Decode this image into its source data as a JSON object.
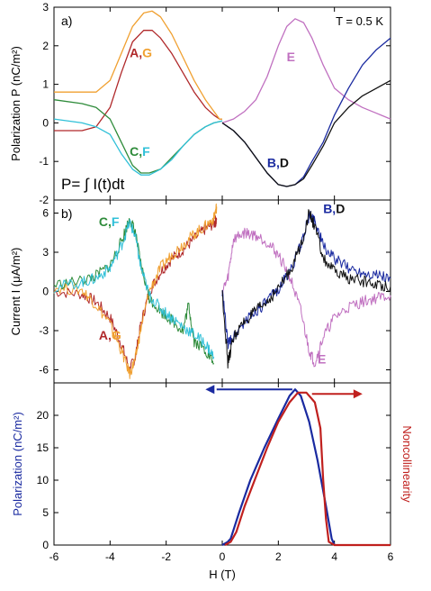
{
  "chart_data": [
    {
      "type": "line",
      "panel_label": "a)",
      "annotation_temperature": "T = 0.5 K",
      "annotation_formula": "P= ∫ I(t)dt",
      "ylabel": "Polarization P (nC/m²)",
      "xlim": [
        -6,
        6
      ],
      "ylim": [
        -2,
        3
      ],
      "xticks": [
        -6,
        -4,
        -2,
        0,
        2,
        4,
        6
      ],
      "yticks": [
        -2,
        -1,
        0,
        1,
        2,
        3
      ],
      "grid": false,
      "series": [
        {
          "name": "A,G",
          "color": "#b0282a",
          "x": [
            -6,
            -5,
            -4.5,
            -4.0,
            -3.6,
            -3.2,
            -2.8,
            -2.5,
            -2.2,
            -1.8,
            -1.4,
            -1.0,
            -0.6,
            -0.3,
            -0.1,
            0.0
          ],
          "y": [
            -0.2,
            -0.2,
            -0.1,
            0.4,
            1.3,
            2.1,
            2.4,
            2.4,
            2.2,
            1.8,
            1.3,
            0.8,
            0.4,
            0.2,
            0.1,
            0.1
          ]
        },
        {
          "name": "A,G",
          "color": "#f0a030",
          "x": [
            -6,
            -5,
            -4.5,
            -4.0,
            -3.6,
            -3.2,
            -2.8,
            -2.5,
            -2.2,
            -1.8,
            -1.4,
            -1.0,
            -0.6,
            -0.3,
            -0.1,
            0.0
          ],
          "y": [
            0.8,
            0.8,
            0.8,
            1.1,
            1.8,
            2.5,
            2.85,
            2.9,
            2.75,
            2.3,
            1.7,
            1.1,
            0.6,
            0.3,
            0.1,
            0.1
          ]
        },
        {
          "name": "C,F",
          "color": "#2e8b3a",
          "x": [
            -6,
            -5,
            -4.5,
            -4.0,
            -3.6,
            -3.2,
            -2.9,
            -2.6,
            -2.2,
            -1.8,
            -1.4,
            -1.0,
            -0.6,
            -0.3,
            0.0
          ],
          "y": [
            0.6,
            0.5,
            0.4,
            0.1,
            -0.5,
            -1.1,
            -1.3,
            -1.3,
            -1.2,
            -0.9,
            -0.6,
            -0.3,
            -0.1,
            0.0,
            0.05
          ]
        },
        {
          "name": "C,F",
          "color": "#30c0d8",
          "x": [
            -6,
            -5,
            -4.5,
            -4.0,
            -3.6,
            -3.2,
            -2.9,
            -2.6,
            -2.2,
            -1.8,
            -1.4,
            -1.0,
            -0.6,
            -0.3,
            0.0
          ],
          "y": [
            0.1,
            0.0,
            -0.1,
            -0.3,
            -0.8,
            -1.2,
            -1.35,
            -1.35,
            -1.2,
            -0.95,
            -0.6,
            -0.3,
            -0.1,
            0.0,
            0.05
          ]
        },
        {
          "name": "E",
          "color": "#c070c0",
          "x": [
            0.0,
            0.4,
            0.8,
            1.2,
            1.6,
            2.0,
            2.3,
            2.6,
            2.9,
            3.2,
            3.6,
            4.0,
            4.5,
            5.0,
            5.5,
            6.0
          ],
          "y": [
            0.0,
            0.1,
            0.3,
            0.6,
            1.2,
            2.0,
            2.5,
            2.7,
            2.6,
            2.2,
            1.5,
            0.9,
            0.6,
            0.4,
            0.25,
            0.1
          ]
        },
        {
          "name": "B,D",
          "color": "#1a2aa0",
          "x": [
            0.0,
            0.4,
            0.8,
            1.2,
            1.6,
            2.0,
            2.3,
            2.6,
            2.9,
            3.2,
            3.6,
            4.0,
            4.5,
            5.0,
            5.5,
            6.0
          ],
          "y": [
            0.0,
            -0.2,
            -0.5,
            -0.9,
            -1.3,
            -1.6,
            -1.65,
            -1.6,
            -1.4,
            -1.0,
            -0.5,
            0.2,
            0.9,
            1.5,
            1.9,
            2.2
          ]
        },
        {
          "name": "B,D",
          "color": "#111111",
          "x": [
            0.0,
            0.4,
            0.8,
            1.2,
            1.6,
            2.0,
            2.3,
            2.6,
            2.9,
            3.2,
            3.6,
            4.0,
            4.5,
            5.0,
            5.5,
            6.0
          ],
          "y": [
            0.0,
            -0.2,
            -0.5,
            -0.9,
            -1.3,
            -1.6,
            -1.65,
            -1.6,
            -1.45,
            -1.1,
            -0.6,
            0.0,
            0.4,
            0.7,
            0.9,
            1.1
          ]
        }
      ],
      "labels": [
        {
          "text": "A,G",
          "x": -3.3,
          "y": 1.7,
          "color_A": "#b0282a",
          "color_G": "#f0a030"
        },
        {
          "text": "C,F",
          "x": -3.3,
          "y": -0.85,
          "color_A": "#2e8b3a",
          "color_G": "#30c0d8"
        },
        {
          "text": "E",
          "x": 2.3,
          "y": 1.6,
          "color": "#c070c0"
        },
        {
          "text": "B,D",
          "x": 1.6,
          "y": -1.15,
          "color_A": "#1a2aa0",
          "color_G": "#111111"
        }
      ]
    },
    {
      "type": "line",
      "panel_label": "b)",
      "ylabel": "Current I (μA/m²)",
      "xlim": [
        -6,
        6
      ],
      "ylim": [
        -7,
        7
      ],
      "xticks": [
        -6,
        -4,
        -2,
        0,
        2,
        4,
        6
      ],
      "yticks": [
        -6,
        -3,
        0,
        3,
        6
      ],
      "grid": false,
      "series": [
        {
          "name": "A,G",
          "color": "#b0282a",
          "x": [
            -6,
            -5,
            -4.5,
            -4,
            -3.6,
            -3.3,
            -3.1,
            -2.9,
            -2.6,
            -2.2,
            -1.8,
            -1.4,
            -1.0,
            -0.6,
            -0.3,
            -0.2
          ],
          "y": [
            0,
            -0.2,
            -0.8,
            -2.0,
            -4.0,
            -6.0,
            -5.0,
            -2.5,
            0.0,
            1.5,
            2.5,
            3.2,
            4.0,
            4.8,
            5.2,
            5.5
          ]
        },
        {
          "name": "A,G",
          "color": "#f0a030",
          "x": [
            -6,
            -5,
            -4.5,
            -4,
            -3.6,
            -3.3,
            -3.1,
            -2.9,
            -2.6,
            -2.2,
            -1.8,
            -1.4,
            -1.0,
            -0.6,
            -0.3,
            -0.2
          ],
          "y": [
            0.3,
            0.1,
            -1.0,
            -2.5,
            -4.5,
            -6.3,
            -5.2,
            -2.8,
            0.0,
            1.8,
            2.8,
            3.6,
            4.4,
            5.0,
            5.6,
            6.5
          ]
        },
        {
          "name": "C,F",
          "color": "#2e8b3a",
          "x": [
            -6,
            -5,
            -4.5,
            -4,
            -3.6,
            -3.3,
            -3.1,
            -2.9,
            -2.6,
            -2.2,
            -1.8,
            -1.4,
            -1.2,
            -1.0,
            -0.6,
            -0.3
          ],
          "y": [
            0.5,
            0.8,
            1.2,
            2.0,
            3.8,
            5.6,
            4.5,
            2.0,
            -0.5,
            -1.5,
            -2.2,
            -3.0,
            -1.0,
            -3.8,
            -4.5,
            -5.5
          ]
        },
        {
          "name": "C,F",
          "color": "#30c0d8",
          "x": [
            -6,
            -5,
            -4.5,
            -4,
            -3.6,
            -3.3,
            -3.1,
            -2.9,
            -2.6,
            -2.2,
            -1.8,
            -1.4,
            -1.0,
            -0.6,
            -0.3
          ],
          "y": [
            0.3,
            0.7,
            1.0,
            1.8,
            3.5,
            5.3,
            4.2,
            1.8,
            -0.3,
            -1.3,
            -2.0,
            -2.7,
            -3.3,
            -4.0,
            -5.0
          ]
        },
        {
          "name": "E",
          "color": "#c070c0",
          "x": [
            0.0,
            0.2,
            0.4,
            0.8,
            1.2,
            1.6,
            2.0,
            2.4,
            2.8,
            3.1,
            3.3,
            3.6,
            4.0,
            4.5,
            5.0,
            5.5,
            6.0
          ],
          "y": [
            0.0,
            1.0,
            4.0,
            4.5,
            4.3,
            3.8,
            2.8,
            1.2,
            -1.5,
            -4.5,
            -5.5,
            -3.5,
            -2.0,
            -1.2,
            -0.8,
            -0.5,
            -0.3
          ]
        },
        {
          "name": "B,D",
          "color": "#1a2aa0",
          "x": [
            0.0,
            0.2,
            0.4,
            0.8,
            1.2,
            1.6,
            2.0,
            2.4,
            2.8,
            3.1,
            3.3,
            3.6,
            4.0,
            4.5,
            5.0,
            5.5,
            6.0
          ],
          "y": [
            0.0,
            -4.0,
            -3.5,
            -2.3,
            -1.5,
            -0.8,
            0.2,
            1.5,
            3.5,
            5.8,
            5.5,
            3.5,
            2.5,
            1.8,
            1.5,
            1.3,
            1.0
          ]
        },
        {
          "name": "B,D",
          "color": "#111111",
          "x": [
            0.0,
            0.2,
            0.4,
            0.8,
            1.2,
            1.6,
            2.0,
            2.4,
            2.8,
            3.1,
            3.3,
            3.6,
            4.0,
            4.5,
            5.0,
            5.5,
            6.0
          ],
          "y": [
            0.0,
            -5.5,
            -3.5,
            -2.3,
            -1.5,
            -0.8,
            0.2,
            1.5,
            3.5,
            6.0,
            5.0,
            2.5,
            1.5,
            1.0,
            0.8,
            0.5,
            0.4
          ]
        }
      ],
      "labels": [
        {
          "text": "C,F",
          "x": -4.4,
          "y": 5.0
        },
        {
          "text": "A,G",
          "x": -4.4,
          "y": -3.7
        },
        {
          "text": "B,D",
          "x": 3.6,
          "y": 6.0
        },
        {
          "text": "E",
          "x": 3.4,
          "y": -5.5
        }
      ]
    },
    {
      "type": "line",
      "ylabel": "Polarization (nC/m²)",
      "ylabel_right": "Noncollinearity",
      "xlabel": "H (T)",
      "xlim": [
        -6,
        6
      ],
      "ylim": [
        0,
        25
      ],
      "xticks": [
        -6,
        -4,
        -2,
        0,
        2,
        4,
        6
      ],
      "yticks": [
        0,
        5,
        10,
        15,
        20
      ],
      "grid": false,
      "series": [
        {
          "name": "Polarization",
          "color": "#1a2aa0",
          "x": [
            0.0,
            0.2,
            0.3,
            0.6,
            1.0,
            1.5,
            2.0,
            2.4,
            2.6,
            2.8,
            3.1,
            3.4,
            3.7,
            3.9,
            4.0
          ],
          "y": [
            0.0,
            0.5,
            1.0,
            5.0,
            10.0,
            15.0,
            19.5,
            23.0,
            24.0,
            23.0,
            19.0,
            13.0,
            6.0,
            1.0,
            0.0
          ]
        },
        {
          "name": "Noncollinearity",
          "color": "#c0201e",
          "x": [
            0.1,
            0.3,
            0.5,
            0.8,
            1.2,
            1.6,
            2.0,
            2.4,
            2.7,
            3.0,
            3.3,
            3.5,
            3.6,
            3.7,
            3.8,
            4.0,
            6.0
          ],
          "y": [
            0.0,
            0.5,
            2.0,
            6.0,
            10.5,
            15.0,
            19.0,
            22.0,
            23.5,
            23.5,
            22.0,
            18.0,
            10.0,
            4.0,
            0.5,
            0.0,
            0.0
          ]
        }
      ]
    }
  ]
}
